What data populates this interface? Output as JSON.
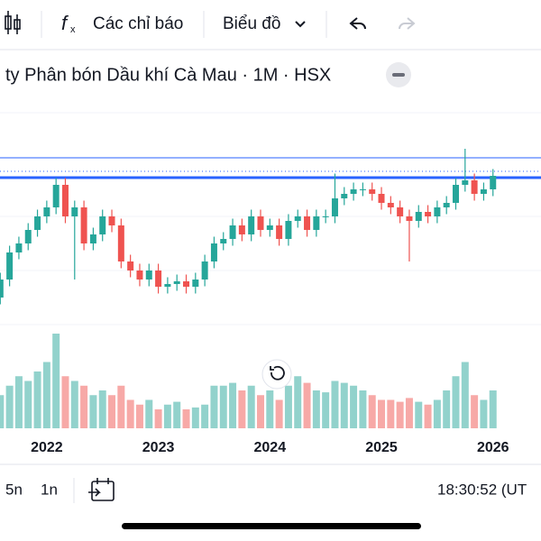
{
  "toolbar": {
    "indicators": "Các chỉ báo",
    "chart_type": "Biểu đồ"
  },
  "symbol_title": "ty Phân bón Dầu khí Cà Mau · 1M · HSX",
  "chart_data": {
    "type": "candlestick",
    "open": [
      6,
      8,
      12,
      18,
      20,
      23,
      26,
      28,
      33,
      26,
      28,
      20,
      22,
      26,
      24,
      16,
      14,
      12,
      14,
      10.4,
      11,
      11.6,
      10.4,
      12,
      16,
      20,
      21,
      24,
      22,
      26,
      23,
      24,
      21,
      25,
      26,
      23,
      26,
      26,
      30,
      31,
      32,
      32,
      31,
      29,
      28,
      26,
      25,
      27,
      26,
      28,
      29,
      33,
      34,
      31,
      32
    ],
    "high": [
      9.5,
      13.5,
      19.5,
      21.5,
      24.5,
      27.5,
      29.5,
      34.5,
      34.5,
      29.5,
      29.5,
      23.5,
      27.5,
      27.5,
      25.5,
      17.5,
      15.5,
      15.5,
      15.5,
      12.5,
      13.1,
      13.1,
      13.5,
      17.5,
      21.5,
      22.5,
      25.5,
      25.5,
      27.5,
      27.5,
      25.5,
      25.5,
      26.5,
      27.5,
      27.5,
      27.5,
      27.5,
      35.5,
      32.5,
      33.5,
      33.5,
      33.5,
      32.5,
      30.5,
      29.5,
      27.5,
      28.5,
      28.5,
      29.5,
      30.5,
      34.5,
      41,
      35.5,
      33.5,
      36.5
    ],
    "low": [
      4.5,
      6.5,
      10.5,
      16.5,
      18.5,
      21.5,
      24.5,
      26.5,
      24.5,
      12,
      18.5,
      18.5,
      20.5,
      22.5,
      14.5,
      12.5,
      10.5,
      10.5,
      8.9,
      8.9,
      9.5,
      8.9,
      8.9,
      10.5,
      14.5,
      18.5,
      19.5,
      20.5,
      20.5,
      21.5,
      21.5,
      19.5,
      19.5,
      23.5,
      21.5,
      21.5,
      24.5,
      24.5,
      28.5,
      29.5,
      30.5,
      29.5,
      27.5,
      26.5,
      24.5,
      16,
      23.5,
      24.5,
      24.5,
      26.5,
      27.5,
      31.5,
      29.5,
      29.5,
      30.5
    ],
    "close": [
      8,
      12,
      18,
      20,
      23,
      26,
      28,
      33,
      26,
      28,
      20,
      22,
      26,
      24,
      16,
      14,
      12,
      14,
      10.4,
      11,
      11.6,
      10.4,
      12,
      16,
      20,
      21,
      24,
      22,
      26,
      23,
      24,
      21,
      25,
      26,
      23,
      26,
      26,
      30,
      31,
      32,
      32,
      31,
      29,
      28,
      26,
      25,
      27,
      26,
      28,
      29,
      33,
      34,
      31,
      32,
      35
    ],
    "volume": [
      40,
      35,
      45,
      55,
      50,
      60,
      70,
      100,
      55,
      50,
      45,
      35,
      40,
      35,
      45,
      30,
      25,
      30,
      20,
      25,
      28,
      20,
      22,
      25,
      45,
      45,
      48,
      40,
      45,
      35,
      40,
      30,
      45,
      55,
      48,
      40,
      38,
      50,
      48,
      45,
      40,
      35,
      30,
      30,
      28,
      32,
      28,
      25,
      30,
      40,
      55,
      70,
      35,
      30,
      40
    ],
    "ylim": [
      0,
      50
    ],
    "volume_lim": [
      0,
      100
    ],
    "up_color": "#26a69a",
    "down_color": "#ef5350",
    "x_labels": [
      "2022",
      "2023",
      "2024",
      "2025",
      "2026"
    ]
  },
  "bottom_bar": {
    "ranges": [
      "5n",
      "1n"
    ],
    "time": "18:30:52 (UT"
  }
}
